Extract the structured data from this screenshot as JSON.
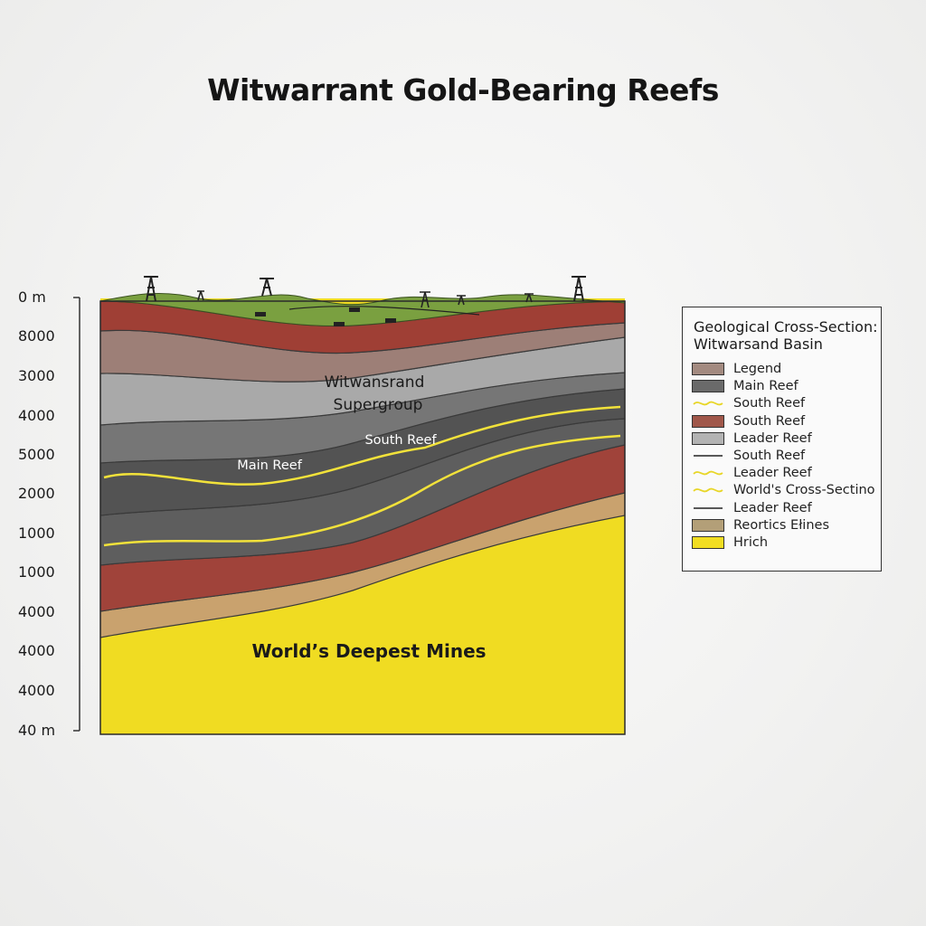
{
  "title": "Witwarrant Gold-Bearing Reefs",
  "depth_axis": {
    "labels": [
      "0 m",
      "8000",
      "3000",
      "4000",
      "5000",
      "2000",
      "1000",
      "1000",
      "4000",
      "4000",
      "4000",
      "40 m"
    ]
  },
  "section_labels": {
    "supergroup": [
      "Witwansrand",
      "Supergroup"
    ],
    "south_reef": "South Reef",
    "main_reef": "Main Reef",
    "deepest_mines": "World’s Deepest Mines"
  },
  "legend": {
    "title_line1": "Geological Cross-Section:",
    "title_line2": "Witwarsand Basin",
    "items": [
      {
        "label": "Legend",
        "kind": "box",
        "color": "#a38a80"
      },
      {
        "label": "Main Reef",
        "kind": "box",
        "color": "#6a6a6a"
      },
      {
        "label": "South Reef",
        "kind": "wave",
        "color": "#e8d628"
      },
      {
        "label": "South Reef",
        "kind": "box",
        "color": "#a0574a"
      },
      {
        "label": "Leader Reef",
        "kind": "box",
        "color": "#b3b3b3"
      },
      {
        "label": "South Reef",
        "kind": "line",
        "color": "#222222"
      },
      {
        "label": "Leader Reef",
        "kind": "wave",
        "color": "#e8d628"
      },
      {
        "label": "World's Cross-Sectino",
        "kind": "wave",
        "color": "#e8d628"
      },
      {
        "label": "Leader Reef",
        "kind": "line",
        "color": "#222222"
      },
      {
        "label": "Reortics Ełines",
        "kind": "box",
        "color": "#b39f78"
      },
      {
        "label": "Hrich",
        "kind": "box",
        "color": "#f2de22"
      }
    ]
  },
  "colors": {
    "grass": "#7aa040",
    "red_layer": "#a0433a",
    "brown_layer": "#9b7a72",
    "light_gray": "#a9a9a9",
    "mid_gray": "#7c7c7c",
    "dark_gray": "#5a5a5a",
    "tan": "#c9a26e",
    "gold": "#f0dc22",
    "reef_line": "#f2e23a"
  }
}
